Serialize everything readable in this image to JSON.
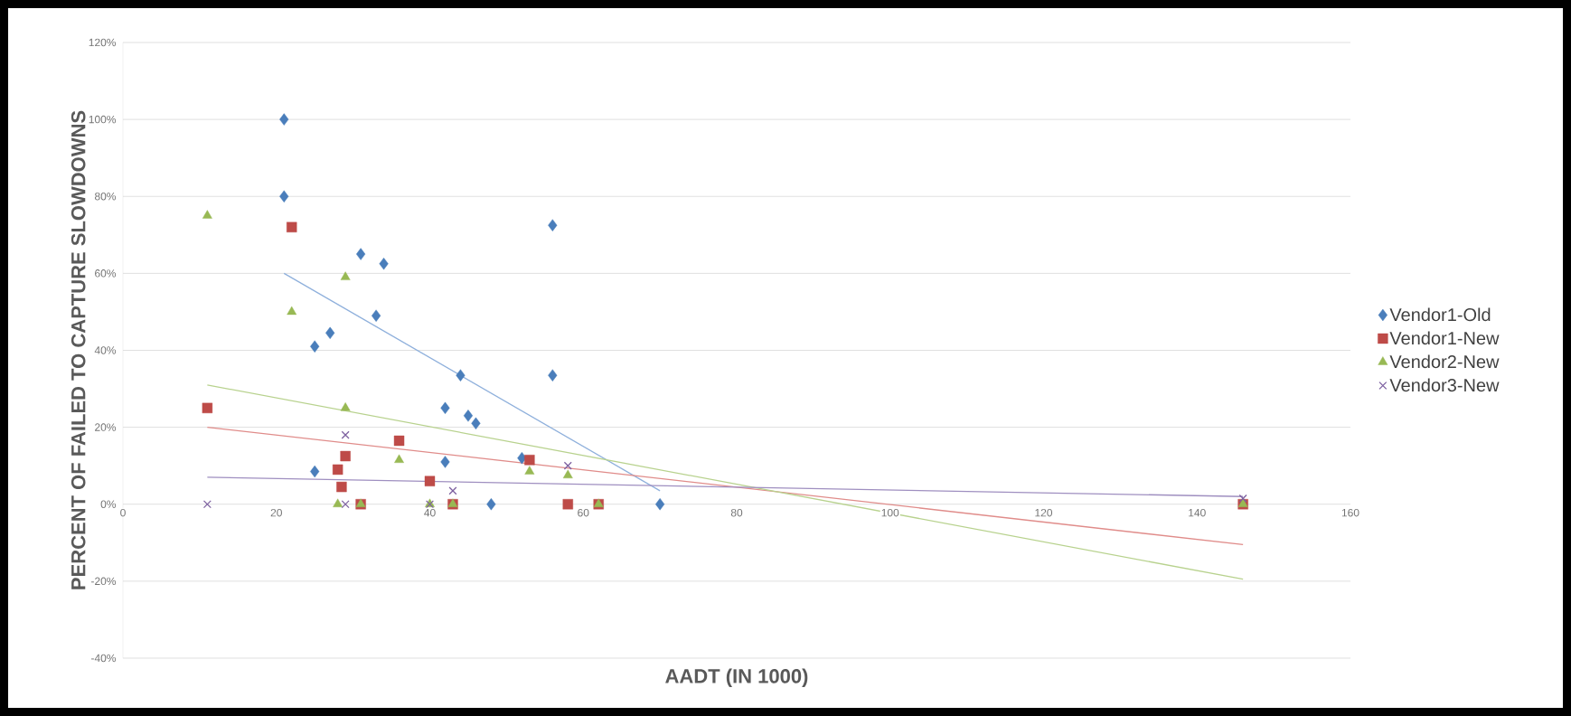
{
  "chart_data": {
    "type": "scatter",
    "xlabel": "AADT (IN 1000)",
    "ylabel": "PERCENT OF FAILED TO CAPTURE SLOWDOWNS",
    "xlim": [
      0,
      160
    ],
    "xticks": [
      0,
      20,
      40,
      60,
      80,
      100,
      120,
      140,
      160
    ],
    "ylim": [
      -40,
      120
    ],
    "yticks": [
      {
        "value": -40,
        "label": "-40%"
      },
      {
        "value": -20,
        "label": "-20%"
      },
      {
        "value": 0,
        "label": "0%"
      },
      {
        "value": 20,
        "label": "20%"
      },
      {
        "value": 40,
        "label": "40%"
      },
      {
        "value": 60,
        "label": "60%"
      },
      {
        "value": 80,
        "label": "80%"
      },
      {
        "value": 100,
        "label": "100%"
      },
      {
        "value": 120,
        "label": "120%"
      }
    ],
    "grid": "y",
    "legend": "right",
    "series": [
      {
        "name": "Vendor1-Old",
        "color": "#4a7ebb",
        "marker": "diamond",
        "x": [
          21,
          21,
          25,
          27,
          31,
          34,
          33,
          25,
          42,
          44,
          45,
          46,
          42,
          48,
          52,
          56,
          56,
          70
        ],
        "values": [
          100,
          80,
          41,
          44.5,
          65,
          62.5,
          49,
          8.5,
          25,
          33.5,
          23,
          21,
          11,
          0,
          12,
          72.5,
          33.5,
          0
        ]
      },
      {
        "name": "Vendor1-New",
        "color": "#be4b48",
        "marker": "square",
        "x": [
          11,
          22,
          28,
          29,
          28.5,
          31,
          36,
          40,
          43,
          53,
          58,
          62,
          146
        ],
        "values": [
          25,
          72,
          9,
          12.5,
          4.5,
          0,
          16.5,
          6,
          0,
          11.5,
          0,
          0,
          0
        ]
      },
      {
        "name": "Vendor2-New",
        "color": "#98b954",
        "marker": "triangle",
        "x": [
          11,
          22,
          29,
          29,
          28,
          31,
          36,
          40,
          43,
          53,
          58,
          62,
          146
        ],
        "values": [
          75,
          50,
          59,
          25,
          0,
          0,
          11.5,
          0,
          0,
          8.5,
          7.5,
          0,
          0
        ]
      },
      {
        "name": "Vendor3-New",
        "color": "#7d60a0",
        "marker": "cross",
        "x": [
          11,
          29,
          29,
          40,
          43,
          58,
          146
        ],
        "values": [
          0,
          18,
          0,
          0,
          3.5,
          10,
          1.5
        ]
      },
      {
        "type": "line",
        "color": "#8fb0dc",
        "marker": "none",
        "x": [
          21,
          70
        ],
        "values": [
          60,
          3.5
        ]
      },
      {
        "type": "line",
        "color": "#e08c8a",
        "marker": "none",
        "x": [
          11,
          146
        ],
        "values": [
          20,
          -10.5
        ]
      },
      {
        "type": "line",
        "color": "#b8d28e",
        "marker": "none",
        "x": [
          11,
          146
        ],
        "values": [
          31,
          -19.5
        ]
      },
      {
        "type": "line",
        "color": "#9f8fc0",
        "marker": "none",
        "x": [
          11,
          146
        ],
        "values": [
          7,
          2
        ]
      }
    ]
  }
}
